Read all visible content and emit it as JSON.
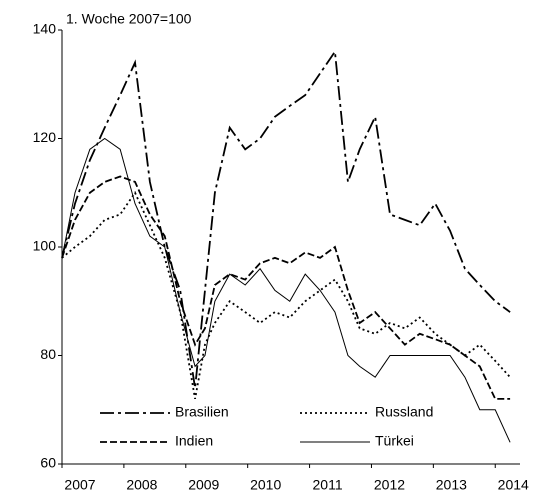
{
  "chart_data": {
    "type": "line",
    "title": "1. Woche 2007=100",
    "x": [
      2007.0,
      2007.21,
      2007.45,
      2007.69,
      2007.94,
      2008.18,
      2008.42,
      2008.66,
      2008.91,
      2009.15,
      2009.31,
      2009.47,
      2009.71,
      2009.96,
      2010.2,
      2010.44,
      2010.68,
      2010.93,
      2011.17,
      2011.41,
      2011.62,
      2011.81,
      2012.06,
      2012.3,
      2012.54,
      2012.78,
      2013.03,
      2013.27,
      2013.51,
      2013.75,
      2014.0,
      2014.24
    ],
    "series": [
      {
        "name": "Brasilien",
        "color": "#000000",
        "dash": "14,4,3,4",
        "values": [
          98,
          108,
          116,
          122,
          128,
          134,
          112,
          100,
          92,
          74,
          92,
          110,
          122,
          118,
          120,
          124,
          126,
          128,
          132,
          136,
          112,
          118,
          124,
          106,
          105,
          104,
          108,
          103,
          96,
          93,
          90,
          88
        ]
      },
      {
        "name": "Russland",
        "color": "#000000",
        "dash": "2,3",
        "values": [
          98,
          100,
          102,
          105,
          106,
          110,
          104,
          98,
          88,
          72,
          82,
          86,
          90,
          88,
          86,
          88,
          87,
          90,
          92,
          94,
          90,
          85,
          84,
          86,
          85,
          87,
          84,
          82,
          80,
          82,
          79,
          76
        ]
      },
      {
        "name": "Indien",
        "color": "#000000",
        "dash": "7,3",
        "values": [
          98,
          105,
          110,
          112,
          113,
          112,
          106,
          102,
          90,
          82,
          85,
          93,
          95,
          94,
          97,
          98,
          97,
          99,
          98,
          100,
          92,
          86,
          88,
          85,
          82,
          84,
          83,
          82,
          80,
          78,
          72,
          72
        ]
      },
      {
        "name": "Türkei",
        "color": "#000000",
        "dash": "none",
        "values": [
          98,
          110,
          118,
          120,
          118,
          108,
          102,
          100,
          88,
          78,
          80,
          90,
          95,
          93,
          96,
          92,
          90,
          95,
          92,
          88,
          80,
          78,
          76,
          80,
          80,
          80,
          80,
          80,
          76,
          70,
          70,
          64
        ]
      }
    ],
    "xlim": [
      2007,
      2014.4
    ],
    "xticks": [
      2007,
      2008,
      2009,
      2010,
      2011,
      2012,
      2013,
      2014
    ],
    "ylim": [
      60,
      140
    ],
    "yticks": [
      60,
      80,
      100,
      120,
      140
    ],
    "grid": false
  }
}
